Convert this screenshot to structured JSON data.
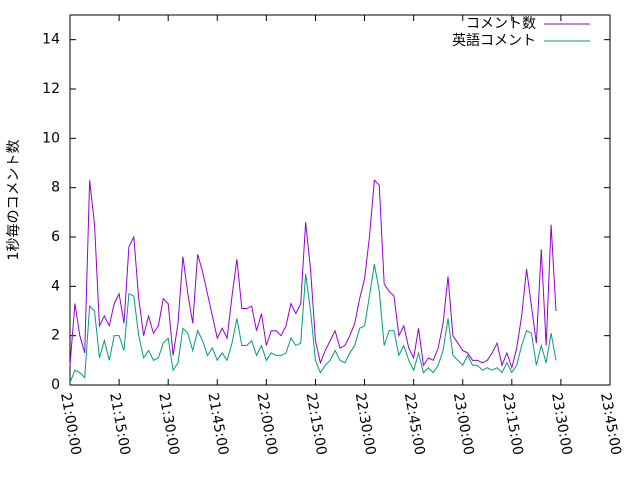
{
  "chart_data": {
    "type": "line",
    "y_label": "1秒毎のコメント数",
    "x": [
      "21:00:00",
      "21:01:30",
      "21:03:00",
      "21:04:30",
      "21:06:00",
      "21:07:30",
      "21:09:00",
      "21:10:30",
      "21:12:00",
      "21:13:30",
      "21:15:00",
      "21:16:30",
      "21:18:00",
      "21:19:30",
      "21:21:00",
      "21:22:30",
      "21:24:00",
      "21:25:30",
      "21:27:00",
      "21:28:30",
      "21:30:00",
      "21:31:30",
      "21:33:00",
      "21:34:30",
      "21:36:00",
      "21:37:30",
      "21:39:00",
      "21:40:30",
      "21:42:00",
      "21:43:30",
      "21:45:00",
      "21:46:30",
      "21:48:00",
      "21:49:30",
      "21:51:00",
      "21:52:30",
      "21:54:00",
      "21:55:30",
      "21:57:00",
      "21:58:30",
      "22:00:00",
      "22:01:30",
      "22:03:00",
      "22:04:30",
      "22:06:00",
      "22:07:30",
      "22:09:00",
      "22:10:30",
      "22:12:00",
      "22:13:30",
      "22:15:00",
      "22:16:30",
      "22:18:00",
      "22:19:30",
      "22:21:00",
      "22:22:30",
      "22:24:00",
      "22:25:30",
      "22:27:00",
      "22:28:30",
      "22:30:00",
      "22:31:30",
      "22:33:00",
      "22:34:30",
      "22:36:00",
      "22:37:30",
      "22:39:00",
      "22:40:30",
      "22:42:00",
      "22:43:30",
      "22:45:00",
      "22:46:30",
      "22:48:00",
      "22:49:30",
      "22:51:00",
      "22:52:30",
      "22:54:00",
      "22:55:30",
      "22:57:00",
      "22:58:30",
      "23:00:00",
      "23:01:30",
      "23:03:00",
      "23:04:30",
      "23:06:00",
      "23:07:30",
      "23:09:00",
      "23:10:30",
      "23:12:00",
      "23:13:30",
      "23:15:00",
      "23:16:30",
      "23:18:00",
      "23:19:30",
      "23:21:00",
      "23:22:30",
      "23:24:00",
      "23:25:30",
      "23:27:00",
      "23:28:30"
    ],
    "series": [
      {
        "name": "コメント数",
        "color": "#9400d3",
        "values": [
          0.8,
          3.3,
          2.0,
          1.3,
          8.3,
          6.5,
          2.4,
          2.8,
          2.4,
          3.3,
          3.7,
          2.5,
          5.6,
          6.0,
          3.5,
          2.0,
          2.8,
          2.1,
          2.4,
          3.5,
          3.3,
          1.2,
          2.5,
          5.2,
          3.7,
          2.5,
          5.3,
          4.6,
          3.7,
          2.8,
          1.9,
          2.3,
          1.9,
          3.6,
          5.1,
          3.1,
          3.1,
          3.2,
          2.2,
          2.9,
          1.6,
          2.2,
          2.2,
          2.0,
          2.4,
          3.3,
          2.9,
          3.3,
          6.6,
          4.7,
          1.8,
          0.9,
          1.4,
          1.8,
          2.2,
          1.5,
          1.6,
          2.0,
          2.5,
          3.5,
          4.3,
          6.0,
          8.3,
          8.1,
          4.1,
          3.8,
          3.6,
          2.0,
          2.4,
          1.5,
          1.1,
          2.3,
          0.8,
          1.1,
          1.0,
          1.5,
          2.5,
          4.4,
          2.0,
          1.7,
          1.4,
          1.3,
          1.0,
          1.0,
          0.9,
          1.0,
          1.3,
          1.7,
          0.8,
          1.3,
          0.7,
          1.5,
          2.8,
          4.7,
          3.2,
          1.7,
          5.5,
          1.6,
          6.5,
          3.0
        ]
      },
      {
        "name": "英語コメント",
        "color": "#009e73",
        "values": [
          0.1,
          0.6,
          0.5,
          0.3,
          3.2,
          3.0,
          1.1,
          1.8,
          1.0,
          2.0,
          2.0,
          1.4,
          3.7,
          3.6,
          2.0,
          1.1,
          1.4,
          1.0,
          1.1,
          1.7,
          1.9,
          0.6,
          0.9,
          2.3,
          2.1,
          1.4,
          2.2,
          1.8,
          1.2,
          1.5,
          1.0,
          1.3,
          1.0,
          1.7,
          2.7,
          1.6,
          1.6,
          1.8,
          1.2,
          1.6,
          1.0,
          1.3,
          1.2,
          1.2,
          1.3,
          1.9,
          1.6,
          1.7,
          4.5,
          3.0,
          1.0,
          0.5,
          0.8,
          1.0,
          1.4,
          1.0,
          0.9,
          1.3,
          1.6,
          2.3,
          2.4,
          3.6,
          4.9,
          3.8,
          1.6,
          2.2,
          2.2,
          1.2,
          1.6,
          1.0,
          0.6,
          1.3,
          0.5,
          0.7,
          0.5,
          0.8,
          1.4,
          2.7,
          1.2,
          1.0,
          0.8,
          1.2,
          0.8,
          0.8,
          0.6,
          0.7,
          0.6,
          0.7,
          0.5,
          0.9,
          0.5,
          0.8,
          1.6,
          2.2,
          2.1,
          0.8,
          1.6,
          0.9,
          2.1,
          1.0
        ]
      }
    ],
    "xlim": [
      "21:00:00",
      "23:45:00"
    ],
    "xticks": [
      "21:00:00",
      "21:15:00",
      "21:30:00",
      "21:45:00",
      "22:00:00",
      "22:15:00",
      "22:30:00",
      "22:45:00",
      "23:00:00",
      "23:15:00",
      "23:30:00",
      "23:45:00"
    ],
    "ylim": [
      0,
      15
    ],
    "yticks": [
      0,
      2,
      4,
      6,
      8,
      10,
      12,
      14
    ],
    "legend": "top-right"
  }
}
